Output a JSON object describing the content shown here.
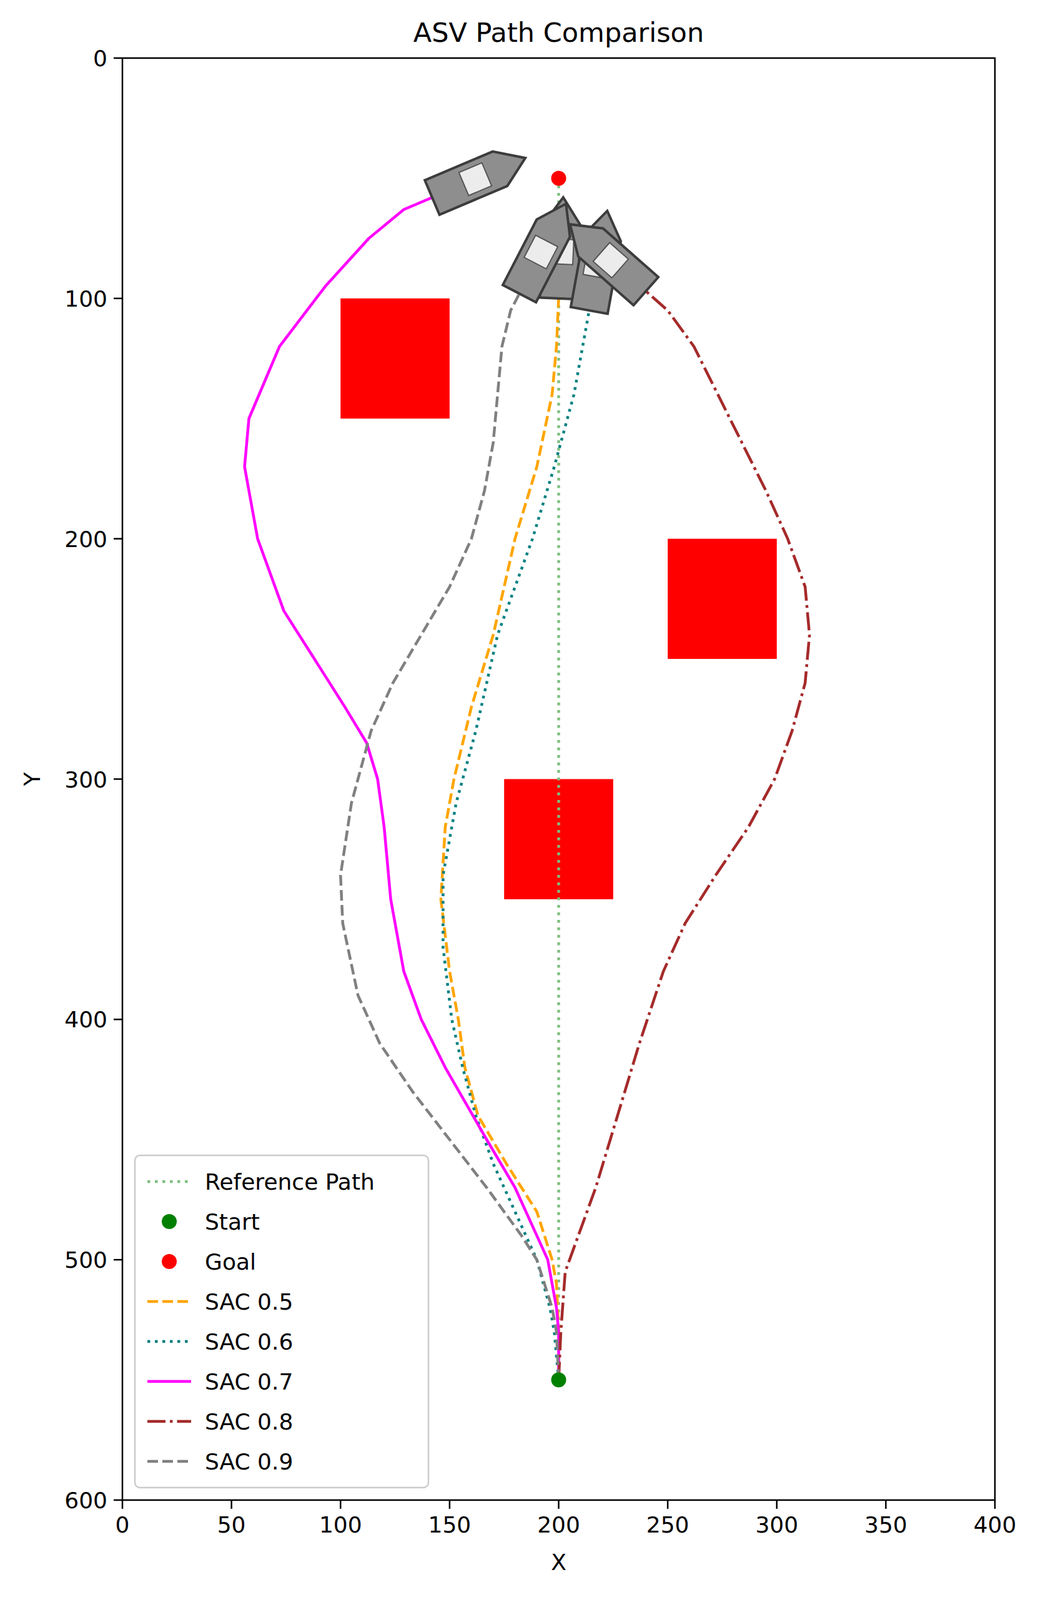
{
  "chart_data": {
    "type": "line",
    "title": "ASV Path Comparison",
    "x_label": "X",
    "y_label": "Y",
    "xlim": [
      0,
      400
    ],
    "ylim": [
      600,
      0
    ],
    "xticks": [
      0,
      50,
      100,
      150,
      200,
      250,
      300,
      350,
      400
    ],
    "yticks": [
      0,
      100,
      200,
      300,
      400,
      500,
      600
    ],
    "grid": false,
    "legend": "lower left",
    "obstacles": [
      {
        "x": [
          100,
          150
        ],
        "y": [
          100,
          150
        ],
        "color": "#ff0000"
      },
      {
        "x": [
          250,
          300
        ],
        "y": [
          200,
          250
        ],
        "color": "#ff0000"
      },
      {
        "x": [
          175,
          225
        ],
        "y": [
          300,
          350
        ],
        "color": "#ff0000"
      }
    ],
    "series": [
      {
        "name": "Reference Path",
        "type": "line",
        "color": "#7fbf7f",
        "line_style": "dotted",
        "x": [
          200,
          200
        ],
        "values": [
          550,
          50
        ]
      },
      {
        "name": "Start",
        "type": "scatter",
        "marker": "circle",
        "color": "#008000",
        "x": [
          200
        ],
        "values": [
          550
        ]
      },
      {
        "name": "Goal",
        "type": "scatter",
        "marker": "circle",
        "color": "#ff0000",
        "x": [
          200
        ],
        "values": [
          50
        ]
      },
      {
        "name": "SAC 0.5",
        "type": "line",
        "color": "#ffa500",
        "line_style": "dashed",
        "x": [
          200,
          200,
          199,
          197,
          190,
          176,
          163,
          157,
          154,
          150,
          146,
          148,
          152,
          160,
          170,
          180,
          190,
          197,
          199,
          200
        ],
        "values": [
          550,
          530,
          510,
          500,
          480,
          460,
          440,
          420,
          400,
          380,
          350,
          320,
          300,
          270,
          240,
          200,
          170,
          140,
          120,
          100
        ]
      },
      {
        "name": "SAC 0.6",
        "type": "line",
        "color": "#008080",
        "line_style": "dotted",
        "x": [
          200,
          198,
          196,
          190,
          180,
          170,
          162,
          156,
          151,
          147,
          147,
          153,
          162,
          172,
          188,
          198,
          207,
          211,
          214
        ],
        "values": [
          550,
          530,
          520,
          500,
          480,
          460,
          440,
          420,
          400,
          370,
          340,
          310,
          280,
          240,
          200,
          170,
          140,
          120,
          105
        ]
      },
      {
        "name": "SAC 0.7",
        "type": "line",
        "color": "#ff00ff",
        "line_style": "solid",
        "x": [
          200,
          200,
          199,
          195,
          190,
          180,
          167,
          148,
          137,
          129,
          123,
          120,
          117,
          112,
          102,
          88,
          74,
          62,
          56,
          58,
          72,
          93,
          113,
          129,
          142
        ],
        "values": [
          550,
          530,
          520,
          500,
          490,
          470,
          450,
          420,
          400,
          380,
          350,
          320,
          300,
          285,
          270,
          250,
          230,
          200,
          170,
          150,
          120,
          95,
          75,
          63,
          58
        ]
      },
      {
        "name": "SAC 0.8",
        "type": "line",
        "color": "#a52a2a",
        "line_style": "dashdot",
        "x": [
          200,
          201,
          203,
          209,
          217,
          227,
          237,
          248,
          258,
          272,
          287,
          299,
          307,
          313,
          315,
          313,
          305,
          295,
          284,
          273,
          262,
          250,
          240
        ],
        "values": [
          550,
          530,
          505,
          490,
          470,
          440,
          410,
          380,
          360,
          340,
          320,
          300,
          280,
          260,
          240,
          220,
          200,
          180,
          160,
          140,
          120,
          105,
          97
        ]
      },
      {
        "name": "SAC 0.9",
        "type": "line",
        "color": "#808080",
        "line_style": "dashed",
        "x": [
          200,
          199,
          197,
          190,
          183,
          167,
          150,
          133,
          118,
          108,
          101,
          100,
          105,
          114,
          124,
          137,
          150,
          160,
          166,
          170,
          172,
          174,
          178,
          182
        ],
        "values": [
          550,
          530,
          520,
          500,
          490,
          470,
          450,
          430,
          410,
          390,
          360,
          340,
          310,
          280,
          260,
          240,
          220,
          200,
          180,
          160,
          140,
          120,
          105,
          98
        ]
      }
    ]
  }
}
